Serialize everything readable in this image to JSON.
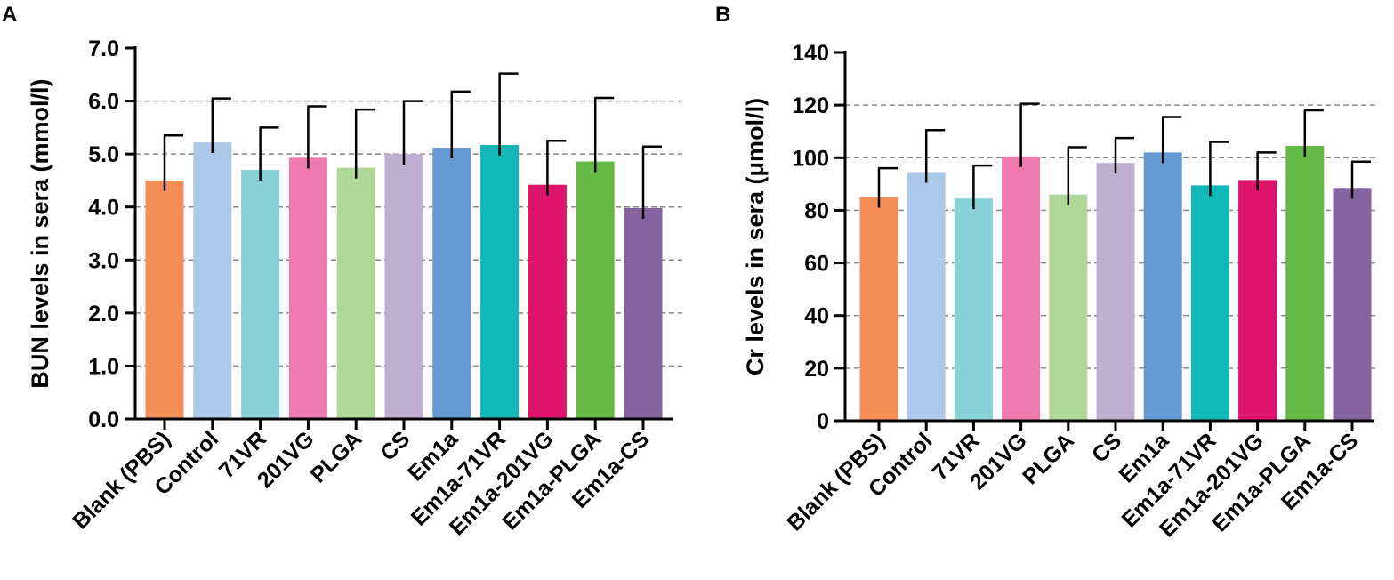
{
  "chart_data": [
    {
      "panel": "A",
      "type": "bar",
      "ylabel": "BUN levels in sera (mmol/l)",
      "ylim": [
        0,
        7
      ],
      "yticks": [
        0,
        1,
        2,
        3,
        4,
        5,
        6,
        7
      ],
      "ytick_labels": [
        "0.0",
        "1.0",
        "2.0",
        "3.0",
        "4.0",
        "5.0",
        "6.0",
        "7.0"
      ],
      "gridlines": [
        1,
        2,
        3,
        4,
        5,
        6
      ],
      "categories": [
        "Blank (PBS)",
        "Control",
        "71VR",
        "201VG",
        "PLGA",
        "CS",
        "Em1a",
        "Em1a-71VR",
        "Em1a-201VG",
        "Em1a-PLGA",
        "Em1a-CS"
      ],
      "values": [
        4.5,
        5.22,
        4.7,
        4.93,
        4.74,
        5.0,
        5.12,
        5.17,
        4.42,
        4.86,
        3.98
      ],
      "errors": [
        0.85,
        0.83,
        0.8,
        0.97,
        1.1,
        1.0,
        1.06,
        1.35,
        0.83,
        1.2,
        1.16
      ],
      "colors": [
        "#F58E56",
        "#ADC9E9",
        "#88D1D7",
        "#EF7AAF",
        "#AED897",
        "#C0AECE",
        "#6499D1",
        "#12B7B8",
        "#DF136C",
        "#66B946",
        "#84649E"
      ]
    },
    {
      "panel": "B",
      "type": "bar",
      "ylabel": "Cr levels in sera (μmol/l)",
      "ylim": [
        0,
        140
      ],
      "yticks": [
        0,
        20,
        40,
        60,
        80,
        100,
        120,
        140
      ],
      "ytick_labels": [
        "0",
        "20",
        "40",
        "60",
        "80",
        "100",
        "120",
        "140"
      ],
      "gridlines": [
        20,
        40,
        60,
        80,
        100,
        120
      ],
      "categories": [
        "Blank (PBS)",
        "Control",
        "71VR",
        "201VG",
        "PLGA",
        "CS",
        "Em1a",
        "Em1a-71VR",
        "Em1a-201VG",
        "Em1a-PLGA",
        "Em1a-CS"
      ],
      "values": [
        85,
        94.5,
        84.5,
        100.5,
        86,
        98,
        102,
        89.5,
        91.5,
        104.5,
        88.5
      ],
      "errors": [
        11,
        16,
        12.5,
        20,
        18,
        9.5,
        13.5,
        16.5,
        10.5,
        13.5,
        10
      ],
      "colors": [
        "#F58E56",
        "#ADC9E9",
        "#88D1D7",
        "#EF7AAF",
        "#AED897",
        "#C0AECE",
        "#6499D1",
        "#12B7B8",
        "#DF136C",
        "#66B946",
        "#84649E"
      ]
    }
  ]
}
